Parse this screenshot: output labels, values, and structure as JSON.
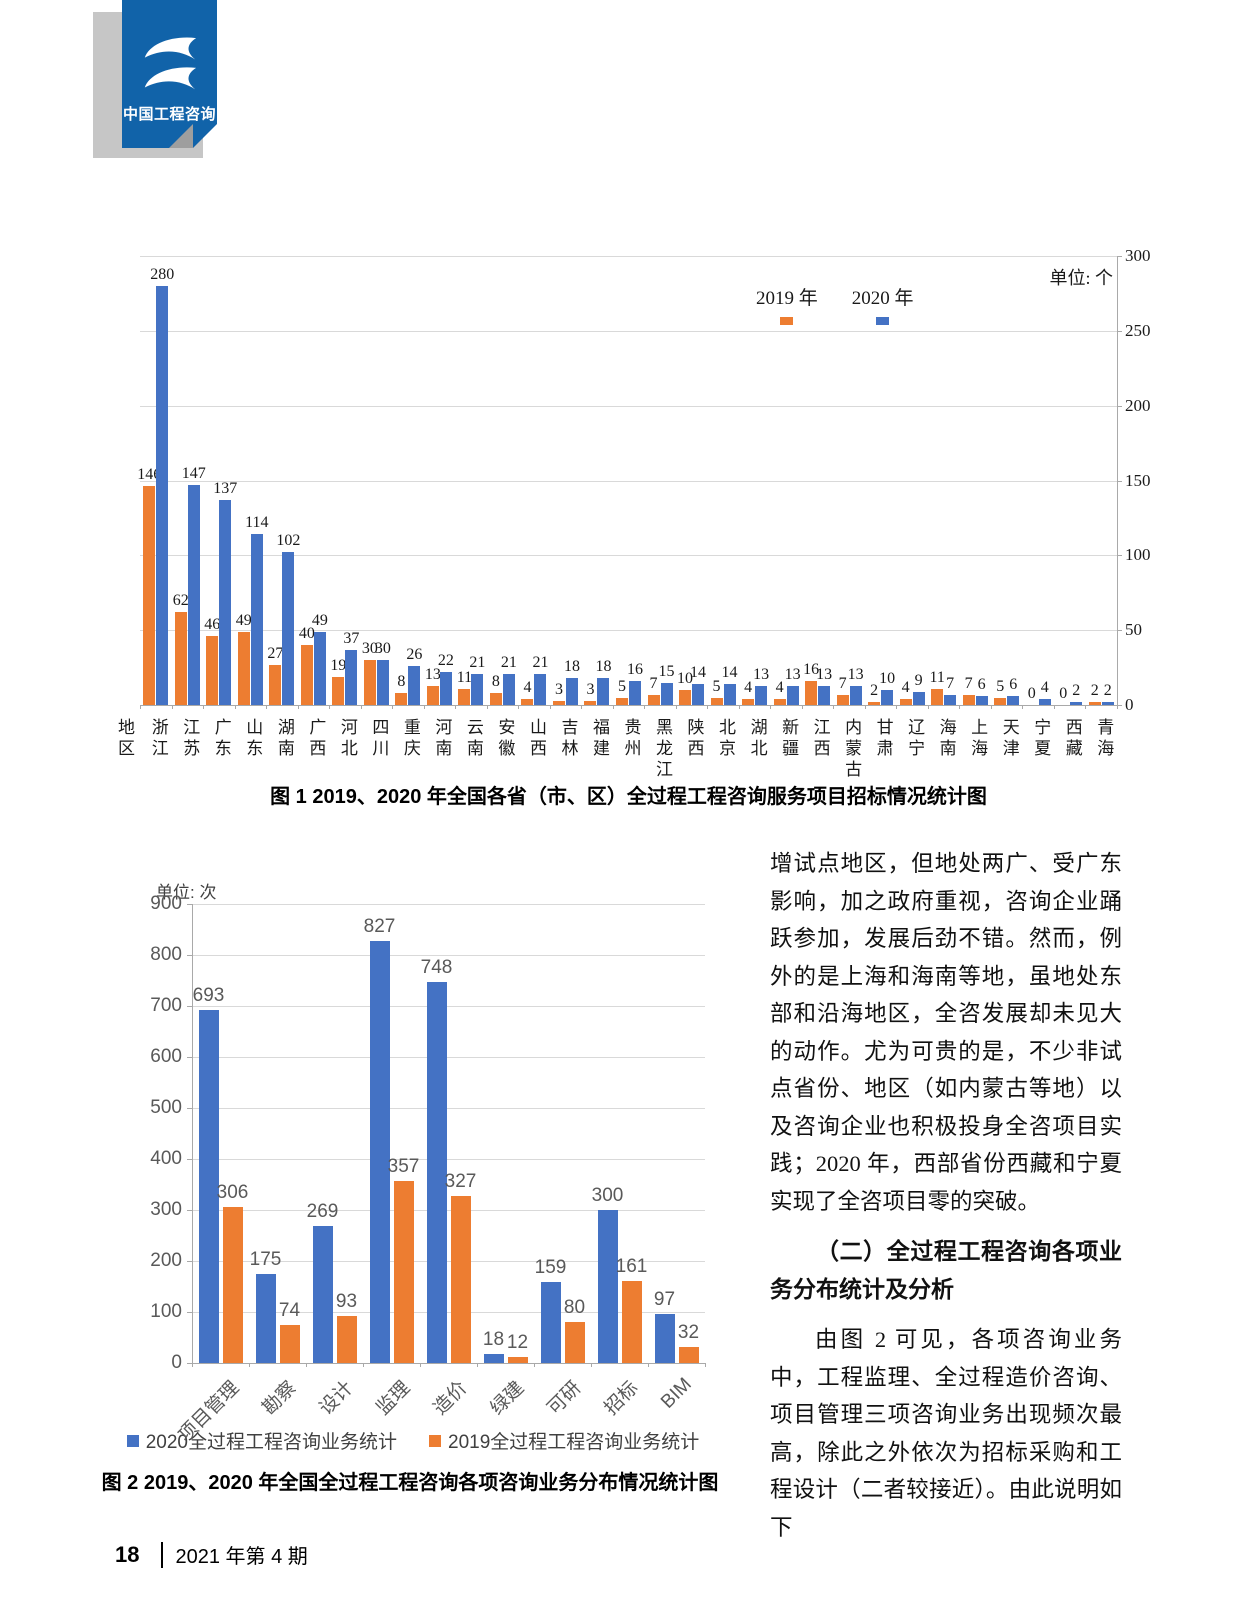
{
  "page": {
    "logo_text": "中国工程咨询",
    "footer": {
      "page_number": "18",
      "issue": "2021 年第 4 期"
    }
  },
  "colors": {
    "bar_2019_orange": "#ED7D31",
    "bar_2020_blue": "#4472C4",
    "logo_blue": "#1163a9",
    "gridline": "#d9d9d9",
    "chart2_text": "#595959"
  },
  "article": {
    "paragraph1": "增试点地区，但地处两广、受广东影响，加之政府重视，咨询企业踊跃参加，发展后劲不错。然而，例外的是上海和海南等地，虽地处东部和沿海地区，全咨发展却未见大的动作。尤为可贵的是，不少非试点省份、地区（如内蒙古等地）以及咨询企业也积极投身全咨项目实践；2020 年，西部省份西藏和宁夏实现了全咨项目零的突破。",
    "heading2": "（二）全过程工程咨询各项业务分布统计及分析",
    "paragraph2": "由图 2 可见，各项咨询业务中，工程监理、全过程造价咨询、项目管理三项咨询业务出现频次最高，除此之外依次为招标采购和工程设计（二者较接近）。由此说明如下"
  },
  "chart_data": [
    {
      "type": "bar",
      "title": "图 1  2019、2020 年全国各省（市、区）全过程工程咨询服务项目招标情况统计图",
      "unit": "单位: 个",
      "xlabel": "地区",
      "ylabel": "",
      "ylim": [
        0,
        300
      ],
      "ytick_step": 50,
      "yaxis_side": "right",
      "grid": true,
      "legend_position": "top-center",
      "categories": [
        "浙江",
        "江苏",
        "广东",
        "山东",
        "湖南",
        "广西",
        "河北",
        "四川",
        "重庆",
        "河南",
        "云南",
        "安徽",
        "山西",
        "吉林",
        "福建",
        "贵州",
        "黑龙江",
        "陕西",
        "北京",
        "湖北",
        "新疆",
        "江西",
        "内蒙古",
        "甘肃",
        "辽宁",
        "海南",
        "上海",
        "天津",
        "宁夏",
        "西藏",
        "青海"
      ],
      "series": [
        {
          "name": "2019 年",
          "color": "#ED7D31",
          "values": [
            146,
            62,
            46,
            49,
            27,
            40,
            19,
            30,
            8,
            13,
            11,
            8,
            4,
            3,
            3,
            5,
            7,
            10,
            5,
            4,
            4,
            16,
            7,
            2,
            4,
            11,
            7,
            5,
            0,
            0,
            2
          ]
        },
        {
          "name": "2020 年",
          "color": "#4472C4",
          "values": [
            280,
            147,
            137,
            114,
            102,
            49,
            37,
            30,
            26,
            22,
            21,
            21,
            21,
            18,
            18,
            16,
            15,
            14,
            14,
            13,
            13,
            13,
            13,
            10,
            9,
            7,
            6,
            6,
            4,
            2,
            2
          ]
        }
      ]
    },
    {
      "type": "bar",
      "title": "图 2  2019、2020 年全国全过程工程咨询各项咨询业务分布情况统计图",
      "unit": "单位: 次",
      "xlabel": "",
      "ylabel": "",
      "ylim": [
        0,
        900
      ],
      "ytick_step": 100,
      "yaxis_side": "left",
      "grid": true,
      "legend_position": "bottom",
      "categories": [
        "项目管理",
        "勘察",
        "设计",
        "监理",
        "造价",
        "绿建",
        "可研",
        "招标",
        "BIM"
      ],
      "series": [
        {
          "name": "2020全过程工程咨询业务统计",
          "color": "#4472C4",
          "values": [
            693,
            175,
            269,
            827,
            748,
            18,
            159,
            300,
            97
          ]
        },
        {
          "name": "2019全过程工程咨询业务统计",
          "color": "#ED7D31",
          "values": [
            306,
            74,
            93,
            357,
            327,
            12,
            80,
            161,
            32
          ]
        }
      ]
    }
  ]
}
